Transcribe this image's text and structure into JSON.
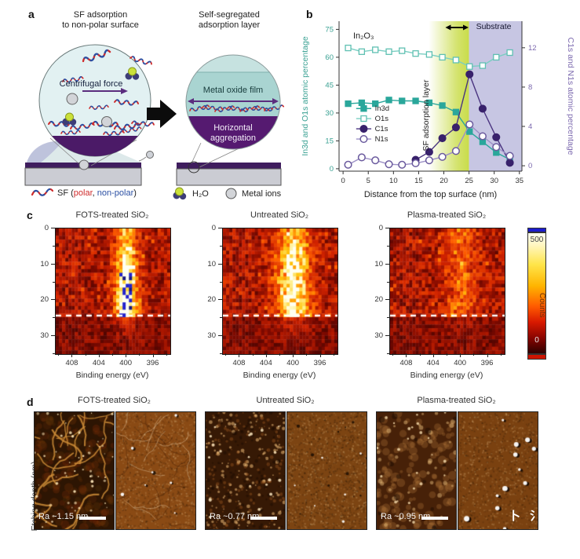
{
  "panel_a": {
    "label": "a",
    "left_title": [
      "SF adsorption",
      "to non-polar surface"
    ],
    "right_title": [
      "Self-segregated",
      "adsorption layer"
    ],
    "centrifugal_label": "Centrifugal force",
    "metal_oxide_label": "Metal oxide film",
    "aggregation_label": [
      "Horizontal",
      "aggregation"
    ],
    "legend": {
      "sf_prefix": "SF (",
      "sf_polar": "polar",
      "sf_sep": ", ",
      "sf_nonpolar": "non-polar",
      "sf_suffix": ")",
      "water": "H₂O",
      "metal_ions": "Metal ions"
    }
  },
  "panel_b": {
    "label": "b",
    "chart_data": {
      "type": "line",
      "xlabel": "Distance from the top surface (nm)",
      "ylabel_left": "In3d and O1s atomic percentage",
      "ylabel_right": "C1s and N1s atomic percentage",
      "xlim": [
        -0.8,
        35.5
      ],
      "xticks": [
        0,
        5,
        10,
        15,
        20,
        25,
        30,
        35
      ],
      "ylim_left": [
        -1.3,
        79.4
      ],
      "yticks_left": [
        0,
        15,
        30,
        45,
        60,
        75
      ],
      "ylim_right": [
        -0.55,
        14.7
      ],
      "yticks_right": [
        0,
        4,
        8,
        12
      ],
      "x": [
        1,
        3.7,
        6.4,
        9.1,
        11.7,
        14.4,
        17.1,
        19.7,
        22.4,
        25.1,
        27.7,
        30.4,
        33.1
      ],
      "series": [
        {
          "name": "In3d",
          "axis": "left",
          "marker": "square-filled",
          "color": "#2aa79b",
          "line": "#2aa79b",
          "values": [
            35,
            35.5,
            35,
            37,
            36.5,
            36.5,
            35.5,
            34,
            30.5,
            20,
            14.5,
            8.7,
            5
          ]
        },
        {
          "name": "O1s",
          "axis": "left",
          "marker": "square-open",
          "color": "#5fc0b2",
          "line": "#79cec2",
          "values": [
            65,
            63,
            64,
            63,
            63.5,
            62,
            61.5,
            60,
            58.5,
            55,
            55.5,
            60,
            62.5
          ]
        },
        {
          "name": "C1s",
          "axis": "right",
          "marker": "circle-filled",
          "color": "#38216b",
          "line": "#4a3480",
          "values": [
            null,
            null,
            null,
            null,
            null,
            0.6,
            1.4,
            2.8,
            3.9,
            9.3,
            5.8,
            2.9,
            0.3
          ]
        },
        {
          "name": "N1s",
          "axis": "right",
          "marker": "circle-open",
          "color": "#6b5b9e",
          "line": "#9c90c6",
          "values": [
            0.1,
            0.85,
            0.55,
            0.15,
            0.1,
            0.25,
            0.55,
            0.9,
            1.5,
            4.2,
            3.0,
            1.9,
            1.0
          ]
        }
      ],
      "regions": [
        {
          "style": "gradient",
          "from": 17,
          "to": 25,
          "color": "#c9dc4a"
        },
        {
          "style": "solid",
          "from": 25,
          "to": 35.5,
          "color": "#c7c6e3"
        }
      ],
      "annotations": {
        "phase_label": "In₂O₃",
        "sf_layer_label": "SF adsorption layer",
        "substrate_label": "Substrate",
        "arrow_from_nm": 20.3,
        "arrow_to_nm": 24.9
      },
      "axis_colors": {
        "left": "#3aa193",
        "right": "#7b68ae"
      }
    }
  },
  "panel_c": {
    "label": "c",
    "ylabel": "Etching depth (nm)",
    "xlabel": "Binding energy (eV)",
    "yticks": [
      0,
      10,
      20,
      30
    ],
    "yminor": [
      5,
      15,
      25,
      35
    ],
    "xticks": [
      408,
      404,
      400,
      396
    ],
    "xminor": [
      410,
      406,
      402,
      398,
      394
    ],
    "x_range": [
      410.5,
      393.5
    ],
    "y_range": [
      0,
      35
    ],
    "dashed_depth": 24.3,
    "colorbar": {
      "max_label": "500",
      "min_label": "0",
      "title": "Counts"
    },
    "maps": [
      {
        "title": "FOTS-treated SiO₂",
        "peak_amp": 430,
        "peak_sigma": 1.15,
        "spike": true,
        "seed": 7
      },
      {
        "title": "Untreated SiO₂",
        "peak_amp": 340,
        "peak_sigma": 1.8,
        "spike": false,
        "seed": 13
      },
      {
        "title": "Plasma-treated SiO₂",
        "peak_amp": 150,
        "peak_sigma": 1.7,
        "spike": false,
        "seed": 29
      }
    ]
  },
  "panel_d": {
    "label": "d",
    "groups": [
      {
        "title": "FOTS-treated SiO₂",
        "ra": "Ra ~1.15 nm",
        "height_style": "network",
        "phase_style": "veins",
        "seed": 3
      },
      {
        "title": "Untreated SiO₂",
        "ra": "Ra ~0.77 nm",
        "height_style": "speckle",
        "phase_style": "grain",
        "seed": 11
      },
      {
        "title": "Plasma-treated SiO₂",
        "ra": "Ra ~0.95 nm",
        "height_style": "blobs",
        "phase_style": "spots",
        "seed": 23
      }
    ]
  },
  "watermark": "卜 氵"
}
